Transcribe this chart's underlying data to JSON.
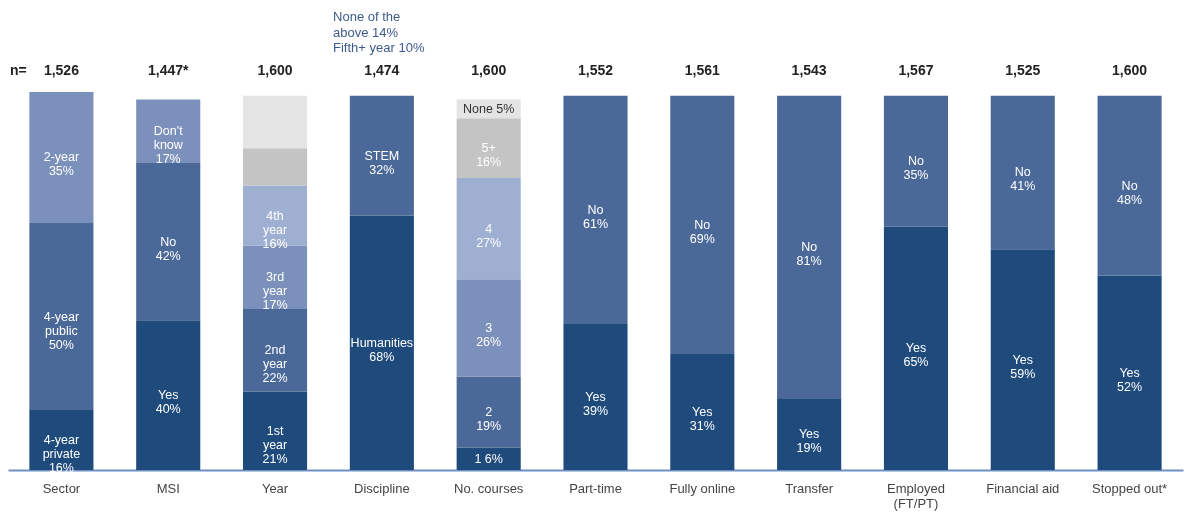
{
  "chart_data": {
    "type": "bar",
    "stacked": true,
    "categories": [
      "Sector",
      "MSI",
      "Year",
      "Discipline",
      "No. courses",
      "Part-time",
      "Fully online",
      "Transfer",
      "Employed (FT/PT)",
      "Financial aid",
      "Stopped out*"
    ],
    "series": [
      {
        "color": "#1e4a7c",
        "values": [
          16,
          40,
          21,
          68,
          6,
          39,
          31,
          19,
          65,
          59,
          52
        ],
        "value_labels": [
          "4-year\nprivate\n16%",
          "Yes\n40%",
          "1st\nyear\n21%",
          "Humanities\n68%",
          "1 6%",
          "Yes\n39%",
          "Yes\n31%",
          "Yes\n19%",
          "Yes\n65%",
          "Yes\n59%",
          "Yes\n52%"
        ]
      },
      {
        "color": "#4a6898",
        "values": [
          50,
          42,
          22,
          32,
          19,
          61,
          69,
          81,
          35,
          41,
          48
        ],
        "value_labels": [
          "4-year\npublic\n50%",
          "No\n42%",
          "2nd\nyear\n22%",
          "STEM\n32%",
          "2\n19%",
          "No\n61%",
          "No\n69%",
          "No\n81%",
          "No\n35%",
          "No\n41%",
          "No\n48%"
        ]
      },
      {
        "color": "#7b90ba",
        "values": [
          35,
          17,
          17,
          null,
          26,
          null,
          null,
          null,
          null,
          null,
          null
        ],
        "value_labels": [
          "2-year\n35%",
          "Don't\nknow\n17%",
          "3rd\nyear\n17%",
          null,
          "3\n26%",
          null,
          null,
          null,
          null,
          null,
          null
        ]
      },
      {
        "color": "#9eafd1",
        "values": [
          null,
          null,
          16,
          null,
          27,
          null,
          null,
          null,
          null,
          null,
          null
        ],
        "value_labels": [
          null,
          null,
          "4th\nyear\n16%",
          null,
          "4\n27%",
          null,
          null,
          null,
          null,
          null,
          null
        ]
      },
      {
        "color": "#c4c4c4",
        "values": [
          null,
          null,
          10,
          null,
          16,
          null,
          null,
          null,
          null,
          null,
          null
        ],
        "value_labels": [
          null,
          null,
          null,
          null,
          "5+\n16%",
          null,
          null,
          null,
          null,
          null,
          null
        ]
      },
      {
        "color": "#e4e4e4",
        "values": [
          null,
          null,
          14,
          null,
          5,
          null,
          null,
          null,
          null,
          null,
          null
        ],
        "value_labels": [
          null,
          null,
          null,
          null,
          "None 5%",
          null,
          null,
          null,
          null,
          null,
          null
        ]
      }
    ],
    "annotations": [
      "n=",
      "1,526",
      "1,447*",
      "1,600",
      "1,474",
      "1,600",
      "1,552",
      "1,561",
      "1,543",
      "1,567",
      "1,525",
      "1,600",
      "None of the\nabove 14%",
      "Fifth+ year 10%"
    ]
  }
}
